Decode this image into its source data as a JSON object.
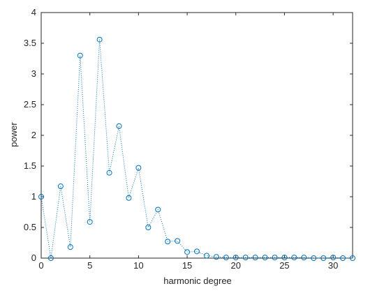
{
  "chart_data": {
    "type": "line",
    "title": "",
    "xlabel": "harmonic degree",
    "ylabel": "power",
    "xlim": [
      0,
      32
    ],
    "ylim": [
      0,
      4
    ],
    "x_ticks": [
      0,
      5,
      10,
      15,
      20,
      25,
      30
    ],
    "x_tick_labels": [
      "0",
      "5",
      "10",
      "15",
      "20",
      "25",
      "30"
    ],
    "y_ticks": [
      0,
      0.5,
      1,
      1.5,
      2,
      2.5,
      3,
      3.5,
      4
    ],
    "y_tick_labels": [
      "0",
      "0.5",
      "1",
      "1.5",
      "2",
      "2.5",
      "3",
      "3.5",
      "4"
    ],
    "grid": false,
    "legend": "none",
    "series": [
      {
        "line_style": "dotted",
        "marker": "open circle",
        "color": "#0072BD",
        "x": [
          0,
          1,
          2,
          3,
          4,
          5,
          6,
          7,
          8,
          9,
          10,
          11,
          12,
          13,
          14,
          15,
          16,
          17,
          18,
          19,
          20,
          21,
          22,
          23,
          24,
          25,
          26,
          27,
          28,
          29,
          30,
          31,
          32
        ],
        "values": [
          1.0,
          0.0,
          1.17,
          0.18,
          3.3,
          0.59,
          3.56,
          1.39,
          2.15,
          0.98,
          1.47,
          0.5,
          0.79,
          0.27,
          0.28,
          0.1,
          0.11,
          0.04,
          0.02,
          0.01,
          0.01,
          0.01,
          0.01,
          0.01,
          0.01,
          0.01,
          0.01,
          0.01,
          0.0,
          0.0,
          0.01,
          0.0,
          0.0
        ]
      }
    ]
  }
}
